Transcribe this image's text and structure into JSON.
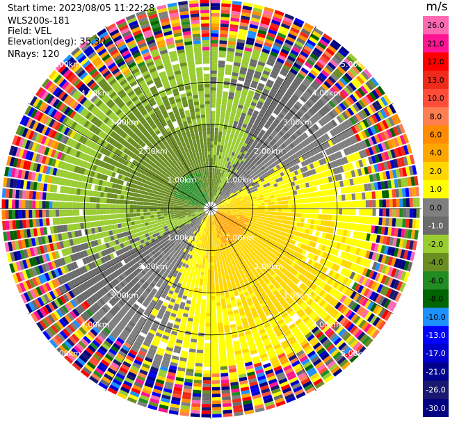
{
  "info": {
    "start_time": "Start time: 2023/08/05 11:22:28",
    "instrument": "WLS200s-181",
    "field": "Field: VEL",
    "elevation": "Elevation(deg): 35.30",
    "nrays": "NRays: 120"
  },
  "colorbar": {
    "title": "m/s",
    "ticks": [
      "26.0",
      "21.0",
      "17.0",
      "13.0",
      "10.0",
      "8.0",
      "6.0",
      "4.0",
      "2.0",
      "1.0",
      "0.0",
      "-1.0",
      "-2.0",
      "-4.0",
      "-6.0",
      "-8.0",
      "-10.0",
      "-13.0",
      "-17.0",
      "-21.0",
      "-26.0",
      "-30.0"
    ],
    "colors": [
      "#ff69b4",
      "#ff1493",
      "#ff0000",
      "#ee2a1a",
      "#ff4d3a",
      "#ff7f50",
      "#ff8c00",
      "#ffa500",
      "#ffd700",
      "#ffff00",
      "#7f7f7f",
      "#6b6b6b",
      "#9acd32",
      "#6b8e23",
      "#228b22",
      "#006400",
      "#1e90ff",
      "#0000ff",
      "#0000cd",
      "#00008b",
      "#191970",
      "#000080"
    ],
    "tick_text_colors": [
      "#000000",
      "#000000",
      "#000000",
      "#000000",
      "#000000",
      "#000000",
      "#000000",
      "#000000",
      "#000000",
      "#000000",
      "#000000",
      "#ffffff",
      "#000000",
      "#000000",
      "#000000",
      "#000000",
      "#000000",
      "#ffffff",
      "#ffffff",
      "#ffffff",
      "#ffffff",
      "#ffffff"
    ]
  },
  "chart_data": {
    "type": "ppi",
    "field": "VEL",
    "units": "m/s",
    "n_rays": 120,
    "elevation_deg": 35.3,
    "value_range": [
      -30,
      30
    ],
    "max_range_km": 5.0,
    "range_rings_km": [
      1,
      2,
      3
    ],
    "range_labels": [
      "1.00km",
      "2.00km",
      "3.00km",
      "4.00km",
      "5.00km"
    ],
    "range_label_directions": [
      "NW",
      "NE",
      "SE",
      "SW"
    ],
    "spoke_step_deg": 30,
    "notes": "Radial velocity field: negative (green) toward NW inner region, positive (yellow/orange) toward SE inner region, grey near zero, noisy values beyond ~3.5 km."
  }
}
